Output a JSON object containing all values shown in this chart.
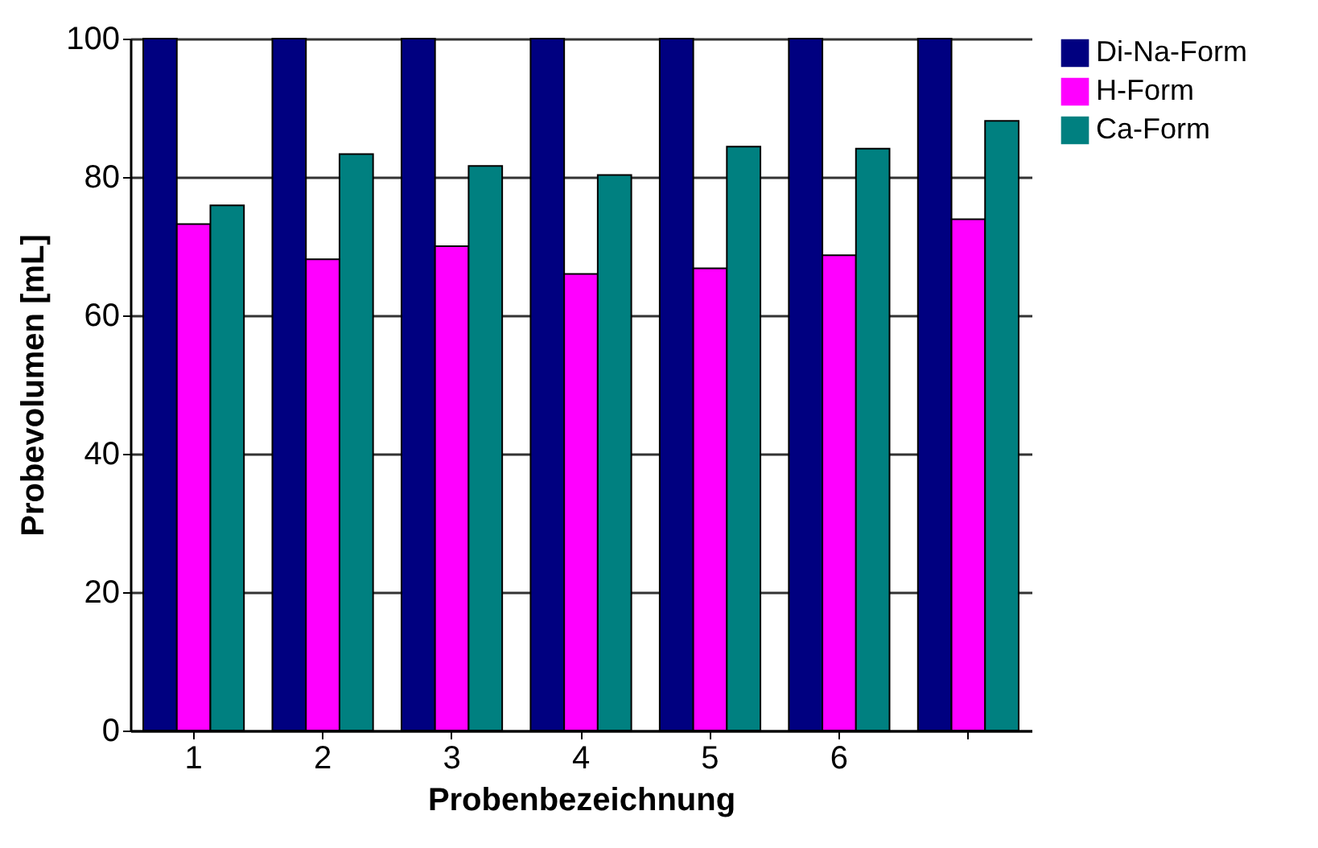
{
  "chart_data": {
    "type": "bar",
    "xlabel": "Probenbezeichnung",
    "ylabel": "Probevolumen [mL]",
    "categories": [
      "1",
      "2",
      "3",
      "4",
      "5",
      "6",
      null
    ],
    "series": [
      {
        "name": "Di-Na-Form",
        "color": "#000080",
        "values": [
          100,
          100,
          100,
          100,
          100,
          100,
          100
        ]
      },
      {
        "name": "H-Form",
        "color": "#ff00ff",
        "values": [
          73.2,
          68.1,
          70.0,
          66.0,
          66.8,
          68.7,
          73.9
        ]
      },
      {
        "name": "Ca-Form",
        "color": "#008080",
        "values": [
          75.9,
          83.3,
          81.6,
          80.3,
          84.4,
          84.1,
          88.1
        ]
      }
    ],
    "ylim": [
      0,
      100
    ],
    "yticks": [
      0,
      20,
      40,
      60,
      80,
      100
    ],
    "grid": "y",
    "legend": "right"
  }
}
